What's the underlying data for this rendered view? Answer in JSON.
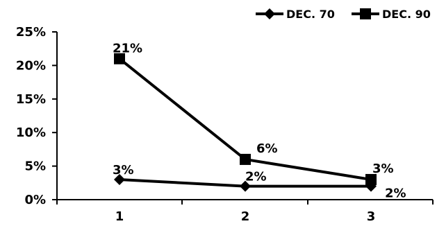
{
  "chart_data": {
    "type": "line",
    "x": [
      "1",
      "2",
      "3"
    ],
    "series": [
      {
        "name": "DEC. 70",
        "marker": "diamond",
        "values": [
          3,
          2,
          2
        ],
        "labels": [
          "3%",
          "2%",
          "2%"
        ],
        "color": "#000000"
      },
      {
        "name": "DEC. 90",
        "marker": "square",
        "values": [
          21,
          6,
          3
        ],
        "labels": [
          "21%",
          "6%",
          "3%"
        ],
        "color": "#000000"
      }
    ],
    "y_ticks": [
      "0%",
      "5%",
      "10%",
      "15%",
      "20%",
      "25%"
    ],
    "ylim": [
      0,
      25
    ],
    "grid": false,
    "legend_position": "top-right"
  }
}
